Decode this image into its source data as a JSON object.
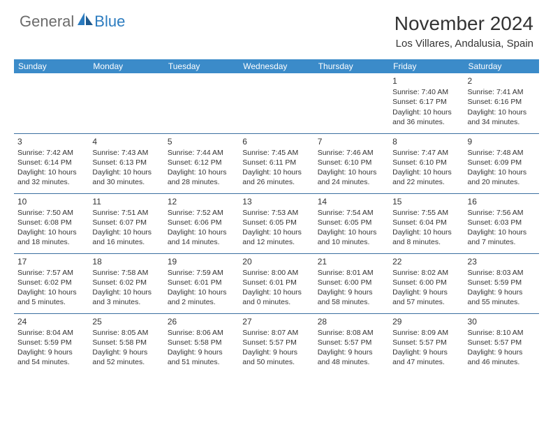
{
  "colors": {
    "header_bg": "#3b8bc9",
    "header_text": "#ffffff",
    "row_border": "#3b6fa0",
    "body_text": "#333333",
    "logo_gray": "#6b6b6b",
    "logo_blue": "#2b7bbf",
    "page_bg": "#ffffff"
  },
  "logo": {
    "part1": "General",
    "part2": "Blue"
  },
  "title": "November 2024",
  "location": "Los Villares, Andalusia, Spain",
  "day_headers": [
    "Sunday",
    "Monday",
    "Tuesday",
    "Wednesday",
    "Thursday",
    "Friday",
    "Saturday"
  ],
  "weeks": [
    [
      null,
      null,
      null,
      null,
      null,
      {
        "n": "1",
        "sr": "Sunrise: 7:40 AM",
        "ss": "Sunset: 6:17 PM",
        "d1": "Daylight: 10 hours",
        "d2": "and 36 minutes."
      },
      {
        "n": "2",
        "sr": "Sunrise: 7:41 AM",
        "ss": "Sunset: 6:16 PM",
        "d1": "Daylight: 10 hours",
        "d2": "and 34 minutes."
      }
    ],
    [
      {
        "n": "3",
        "sr": "Sunrise: 7:42 AM",
        "ss": "Sunset: 6:14 PM",
        "d1": "Daylight: 10 hours",
        "d2": "and 32 minutes."
      },
      {
        "n": "4",
        "sr": "Sunrise: 7:43 AM",
        "ss": "Sunset: 6:13 PM",
        "d1": "Daylight: 10 hours",
        "d2": "and 30 minutes."
      },
      {
        "n": "5",
        "sr": "Sunrise: 7:44 AM",
        "ss": "Sunset: 6:12 PM",
        "d1": "Daylight: 10 hours",
        "d2": "and 28 minutes."
      },
      {
        "n": "6",
        "sr": "Sunrise: 7:45 AM",
        "ss": "Sunset: 6:11 PM",
        "d1": "Daylight: 10 hours",
        "d2": "and 26 minutes."
      },
      {
        "n": "7",
        "sr": "Sunrise: 7:46 AM",
        "ss": "Sunset: 6:10 PM",
        "d1": "Daylight: 10 hours",
        "d2": "and 24 minutes."
      },
      {
        "n": "8",
        "sr": "Sunrise: 7:47 AM",
        "ss": "Sunset: 6:10 PM",
        "d1": "Daylight: 10 hours",
        "d2": "and 22 minutes."
      },
      {
        "n": "9",
        "sr": "Sunrise: 7:48 AM",
        "ss": "Sunset: 6:09 PM",
        "d1": "Daylight: 10 hours",
        "d2": "and 20 minutes."
      }
    ],
    [
      {
        "n": "10",
        "sr": "Sunrise: 7:50 AM",
        "ss": "Sunset: 6:08 PM",
        "d1": "Daylight: 10 hours",
        "d2": "and 18 minutes."
      },
      {
        "n": "11",
        "sr": "Sunrise: 7:51 AM",
        "ss": "Sunset: 6:07 PM",
        "d1": "Daylight: 10 hours",
        "d2": "and 16 minutes."
      },
      {
        "n": "12",
        "sr": "Sunrise: 7:52 AM",
        "ss": "Sunset: 6:06 PM",
        "d1": "Daylight: 10 hours",
        "d2": "and 14 minutes."
      },
      {
        "n": "13",
        "sr": "Sunrise: 7:53 AM",
        "ss": "Sunset: 6:05 PM",
        "d1": "Daylight: 10 hours",
        "d2": "and 12 minutes."
      },
      {
        "n": "14",
        "sr": "Sunrise: 7:54 AM",
        "ss": "Sunset: 6:05 PM",
        "d1": "Daylight: 10 hours",
        "d2": "and 10 minutes."
      },
      {
        "n": "15",
        "sr": "Sunrise: 7:55 AM",
        "ss": "Sunset: 6:04 PM",
        "d1": "Daylight: 10 hours",
        "d2": "and 8 minutes."
      },
      {
        "n": "16",
        "sr": "Sunrise: 7:56 AM",
        "ss": "Sunset: 6:03 PM",
        "d1": "Daylight: 10 hours",
        "d2": "and 7 minutes."
      }
    ],
    [
      {
        "n": "17",
        "sr": "Sunrise: 7:57 AM",
        "ss": "Sunset: 6:02 PM",
        "d1": "Daylight: 10 hours",
        "d2": "and 5 minutes."
      },
      {
        "n": "18",
        "sr": "Sunrise: 7:58 AM",
        "ss": "Sunset: 6:02 PM",
        "d1": "Daylight: 10 hours",
        "d2": "and 3 minutes."
      },
      {
        "n": "19",
        "sr": "Sunrise: 7:59 AM",
        "ss": "Sunset: 6:01 PM",
        "d1": "Daylight: 10 hours",
        "d2": "and 2 minutes."
      },
      {
        "n": "20",
        "sr": "Sunrise: 8:00 AM",
        "ss": "Sunset: 6:01 PM",
        "d1": "Daylight: 10 hours",
        "d2": "and 0 minutes."
      },
      {
        "n": "21",
        "sr": "Sunrise: 8:01 AM",
        "ss": "Sunset: 6:00 PM",
        "d1": "Daylight: 9 hours",
        "d2": "and 58 minutes."
      },
      {
        "n": "22",
        "sr": "Sunrise: 8:02 AM",
        "ss": "Sunset: 6:00 PM",
        "d1": "Daylight: 9 hours",
        "d2": "and 57 minutes."
      },
      {
        "n": "23",
        "sr": "Sunrise: 8:03 AM",
        "ss": "Sunset: 5:59 PM",
        "d1": "Daylight: 9 hours",
        "d2": "and 55 minutes."
      }
    ],
    [
      {
        "n": "24",
        "sr": "Sunrise: 8:04 AM",
        "ss": "Sunset: 5:59 PM",
        "d1": "Daylight: 9 hours",
        "d2": "and 54 minutes."
      },
      {
        "n": "25",
        "sr": "Sunrise: 8:05 AM",
        "ss": "Sunset: 5:58 PM",
        "d1": "Daylight: 9 hours",
        "d2": "and 52 minutes."
      },
      {
        "n": "26",
        "sr": "Sunrise: 8:06 AM",
        "ss": "Sunset: 5:58 PM",
        "d1": "Daylight: 9 hours",
        "d2": "and 51 minutes."
      },
      {
        "n": "27",
        "sr": "Sunrise: 8:07 AM",
        "ss": "Sunset: 5:57 PM",
        "d1": "Daylight: 9 hours",
        "d2": "and 50 minutes."
      },
      {
        "n": "28",
        "sr": "Sunrise: 8:08 AM",
        "ss": "Sunset: 5:57 PM",
        "d1": "Daylight: 9 hours",
        "d2": "and 48 minutes."
      },
      {
        "n": "29",
        "sr": "Sunrise: 8:09 AM",
        "ss": "Sunset: 5:57 PM",
        "d1": "Daylight: 9 hours",
        "d2": "and 47 minutes."
      },
      {
        "n": "30",
        "sr": "Sunrise: 8:10 AM",
        "ss": "Sunset: 5:57 PM",
        "d1": "Daylight: 9 hours",
        "d2": "and 46 minutes."
      }
    ]
  ]
}
